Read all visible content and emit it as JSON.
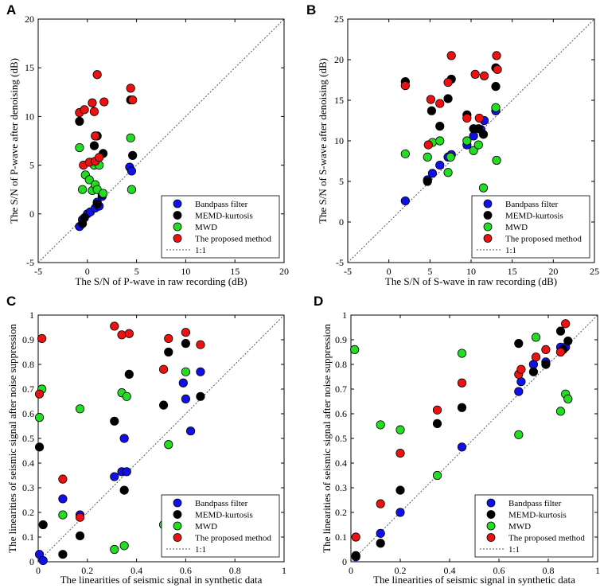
{
  "series_styles": [
    {
      "name": "Bandpass filter",
      "color": "#1010ee"
    },
    {
      "name": "MEMD-kurtosis",
      "color": "#000000"
    },
    {
      "name": "MWD",
      "color": "#22dd22"
    },
    {
      "name": "The proposed method",
      "color": "#ee1111"
    }
  ],
  "reference_line_label": "1:1",
  "chart_data": [
    {
      "panel": "A",
      "type": "scatter",
      "xlabel": "The S/N of P-wave in raw recording (dB)",
      "ylabel": "The S/N of P-wave after denoising (dB)",
      "xlim": [
        -5,
        20
      ],
      "ylim": [
        -5,
        20
      ],
      "xticks": [
        -5,
        0,
        5,
        10,
        15,
        20
      ],
      "yticks": [
        -5,
        0,
        5,
        10,
        15,
        20
      ],
      "tick_labels_x": [
        "-5",
        "0",
        "5",
        "10",
        "15",
        "20"
      ],
      "tick_labels_y": [
        "-5",
        "0",
        "5",
        "10",
        "15",
        "20"
      ],
      "legend": [
        "Bandpass filter",
        "MEMD-kurtosis",
        "MWD",
        "The proposed method",
        "1:1"
      ],
      "series": [
        {
          "name": "Bandpass filter",
          "points": [
            [
              -0.8,
              -1.3
            ],
            [
              -0.5,
              -0.6
            ],
            [
              0,
              0
            ],
            [
              0.3,
              0.2
            ],
            [
              0.8,
              0.6
            ],
            [
              1,
              1.2
            ],
            [
              1.2,
              0.8
            ],
            [
              1.5,
              1.8
            ],
            [
              4.3,
              4.8
            ],
            [
              4.5,
              4.4
            ]
          ]
        },
        {
          "name": "MEMD-kurtosis",
          "points": [
            [
              -0.8,
              9.5
            ],
            [
              -0.5,
              -1
            ],
            [
              -0.3,
              -0.4
            ],
            [
              0.3,
              5.3
            ],
            [
              0.7,
              7
            ],
            [
              1,
              8
            ],
            [
              1,
              1
            ],
            [
              1.5,
              2
            ],
            [
              1.6,
              6.2
            ],
            [
              4.4,
              11.7
            ],
            [
              4.6,
              6
            ]
          ]
        },
        {
          "name": "MWD",
          "points": [
            [
              -0.8,
              6.8
            ],
            [
              -0.5,
              2.5
            ],
            [
              -0.2,
              4
            ],
            [
              0.2,
              3.5
            ],
            [
              0.5,
              2.4
            ],
            [
              0.7,
              5
            ],
            [
              0.8,
              3
            ],
            [
              1,
              2.5
            ],
            [
              1.2,
              5
            ],
            [
              1.6,
              2.1
            ],
            [
              4.4,
              7.8
            ],
            [
              4.5,
              2.5
            ]
          ]
        },
        {
          "name": "The proposed method",
          "points": [
            [
              -0.8,
              10.4
            ],
            [
              -0.3,
              10.7
            ],
            [
              -0.4,
              5
            ],
            [
              0.2,
              5.3
            ],
            [
              0.5,
              11.4
            ],
            [
              0.7,
              10.5
            ],
            [
              0.8,
              8
            ],
            [
              0.8,
              5.4
            ],
            [
              1,
              14.3
            ],
            [
              1.2,
              5.8
            ],
            [
              1.7,
              11.5
            ],
            [
              4.4,
              12.9
            ],
            [
              4.6,
              11.7
            ]
          ]
        }
      ]
    },
    {
      "panel": "B",
      "type": "scatter",
      "xlabel": "The S/N of S-wave in raw recording (dB)",
      "ylabel": "The S/N of S-wave after denoising (dB)",
      "xlim": [
        -5,
        25
      ],
      "ylim": [
        -5,
        25
      ],
      "xticks": [
        -5,
        0,
        5,
        10,
        15,
        20,
        25
      ],
      "yticks": [
        -5,
        0,
        5,
        10,
        15,
        20,
        25
      ],
      "tick_labels_x": [
        "-5",
        "0",
        "5",
        "10",
        "15",
        "20",
        "25"
      ],
      "tick_labels_y": [
        "-5",
        "0",
        "5",
        "10",
        "15",
        "20",
        "25"
      ],
      "legend": [
        "Bandpass filter",
        "MEMD-kurtosis",
        "MWD",
        "The proposed method",
        "1:1"
      ],
      "series": [
        {
          "name": "Bandpass filter",
          "points": [
            [
              2,
              2.6
            ],
            [
              4.7,
              5.2
            ],
            [
              5.3,
              6
            ],
            [
              6.2,
              7
            ],
            [
              7.2,
              8
            ],
            [
              7.6,
              8.3
            ],
            [
              9.5,
              9.5
            ],
            [
              10.3,
              10.6
            ],
            [
              11.2,
              11.4
            ],
            [
              11.6,
              12.5
            ],
            [
              13,
              13.7
            ]
          ]
        },
        {
          "name": "MEMD-kurtosis",
          "points": [
            [
              2,
              17.3
            ],
            [
              4.7,
              5
            ],
            [
              5.2,
              13.7
            ],
            [
              6.2,
              11.8
            ],
            [
              7.2,
              15.2
            ],
            [
              7.6,
              17.6
            ],
            [
              9.5,
              13.2
            ],
            [
              10.3,
              11.5
            ],
            [
              10.9,
              11.5
            ],
            [
              11.5,
              10.8
            ],
            [
              13,
              16.7
            ],
            [
              13,
              19
            ]
          ]
        },
        {
          "name": "MWD",
          "points": [
            [
              2,
              8.4
            ],
            [
              4.7,
              8
            ],
            [
              5.3,
              9.8
            ],
            [
              6.2,
              10
            ],
            [
              7.2,
              6.1
            ],
            [
              7.5,
              8
            ],
            [
              9.5,
              10
            ],
            [
              10.3,
              8.8
            ],
            [
              10.9,
              9.5
            ],
            [
              11.5,
              4.2
            ],
            [
              13,
              14.1
            ],
            [
              13.1,
              7.6
            ]
          ]
        },
        {
          "name": "The proposed method",
          "points": [
            [
              2,
              16.8
            ],
            [
              4.8,
              9.5
            ],
            [
              5.1,
              15.1
            ],
            [
              6.2,
              14.6
            ],
            [
              7.2,
              17.2
            ],
            [
              7.6,
              20.5
            ],
            [
              9.5,
              12.8
            ],
            [
              10.5,
              18.2
            ],
            [
              11,
              12.8
            ],
            [
              11.6,
              18
            ],
            [
              13.1,
              20.5
            ],
            [
              13.2,
              18.8
            ]
          ]
        }
      ]
    },
    {
      "panel": "C",
      "type": "scatter",
      "xlabel": "The linearities of seismic signal in synthetic data",
      "ylabel": "The linearities of seismic signal after noise suppression",
      "xlim": [
        0,
        1
      ],
      "ylim": [
        0,
        1
      ],
      "xticks": [
        0,
        0.2,
        0.4,
        0.6,
        0.8,
        1
      ],
      "yticks": [
        0,
        0.1,
        0.2,
        0.3,
        0.4,
        0.5,
        0.6,
        0.7,
        0.8,
        0.9,
        1
      ],
      "tick_labels_x": [
        "0",
        "0.2",
        "0.4",
        "0.6",
        "0.8",
        "1"
      ],
      "tick_labels_y": [
        "0",
        "0.1",
        "0.2",
        "0.3",
        "0.4",
        "0.5",
        "0.6",
        "0.7",
        "0.8",
        "0.9",
        "1"
      ],
      "legend": [
        "Bandpass filter",
        "MEMD-kurtosis",
        "MWD",
        "The proposed method",
        "1:1"
      ],
      "series": [
        {
          "name": "Bandpass filter",
          "points": [
            [
              0.005,
              0.03
            ],
            [
              0.02,
              0.005
            ],
            [
              0.1,
              0.255
            ],
            [
              0.17,
              0.19
            ],
            [
              0.31,
              0.345
            ],
            [
              0.34,
              0.365
            ],
            [
              0.35,
              0.5
            ],
            [
              0.36,
              0.365
            ],
            [
              0.59,
              0.725
            ],
            [
              0.6,
              0.66
            ],
            [
              0.62,
              0.53
            ],
            [
              0.66,
              0.77
            ]
          ]
        },
        {
          "name": "MEMD-kurtosis",
          "points": [
            [
              0.005,
              0.465
            ],
            [
              0.02,
              0.15
            ],
            [
              0.1,
              0.03
            ],
            [
              0.17,
              0.105
            ],
            [
              0.31,
              0.57
            ],
            [
              0.35,
              0.29
            ],
            [
              0.37,
              0.76
            ],
            [
              0.51,
              0.635
            ],
            [
              0.53,
              0.85
            ],
            [
              0.6,
              0.885
            ],
            [
              0.66,
              0.67
            ]
          ]
        },
        {
          "name": "MWD",
          "points": [
            [
              0.005,
              0.585
            ],
            [
              0.015,
              0.7
            ],
            [
              0.1,
              0.19
            ],
            [
              0.17,
              0.62
            ],
            [
              0.31,
              0.05
            ],
            [
              0.35,
              0.065
            ],
            [
              0.34,
              0.685
            ],
            [
              0.36,
              0.67
            ],
            [
              0.51,
              0.15
            ],
            [
              0.53,
              0.475
            ],
            [
              0.6,
              0.77
            ],
            [
              0.66,
              0.165
            ]
          ]
        },
        {
          "name": "The proposed method",
          "points": [
            [
              0.005,
              0.68
            ],
            [
              0.015,
              0.905
            ],
            [
              0.1,
              0.335
            ],
            [
              0.17,
              0.18
            ],
            [
              0.31,
              0.955
            ],
            [
              0.34,
              0.92
            ],
            [
              0.37,
              0.925
            ],
            [
              0.51,
              0.78
            ],
            [
              0.53,
              0.905
            ],
            [
              0.6,
              0.93
            ],
            [
              0.66,
              0.88
            ]
          ]
        }
      ]
    },
    {
      "panel": "D",
      "type": "scatter",
      "xlabel": "The linearities of seismic signal in synthetic data",
      "ylabel": "The linearities of seismic signal after noise suppression",
      "xlim": [
        0,
        1
      ],
      "ylim": [
        0,
        1
      ],
      "xticks": [
        0,
        0.2,
        0.4,
        0.6,
        0.8,
        1
      ],
      "yticks": [
        0,
        0.1,
        0.2,
        0.3,
        0.4,
        0.5,
        0.6,
        0.7,
        0.8,
        0.9,
        1
      ],
      "tick_labels_x": [
        "0",
        "0.2",
        "0.4",
        "0.6",
        "0.8",
        "1"
      ],
      "tick_labels_y": [
        "0",
        "0.1",
        "0.2",
        "0.3",
        "0.4",
        "0.5",
        "0.6",
        "0.7",
        "0.8",
        "0.9",
        "1"
      ],
      "legend": [
        "Bandpass filter",
        "MEMD-kurtosis",
        "MWD",
        "The proposed method",
        "1:1"
      ],
      "series": [
        {
          "name": "Bandpass filter",
          "points": [
            [
              0.02,
              0.02
            ],
            [
              0.12,
              0.115
            ],
            [
              0.2,
              0.2
            ],
            [
              0.45,
              0.465
            ],
            [
              0.68,
              0.69
            ],
            [
              0.69,
              0.73
            ],
            [
              0.74,
              0.8
            ],
            [
              0.79,
              0.81
            ],
            [
              0.85,
              0.87
            ],
            [
              0.87,
              0.87
            ]
          ]
        },
        {
          "name": "MEMD-kurtosis",
          "points": [
            [
              0.02,
              0.025
            ],
            [
              0.12,
              0.075
            ],
            [
              0.2,
              0.29
            ],
            [
              0.35,
              0.56
            ],
            [
              0.45,
              0.625
            ],
            [
              0.68,
              0.885
            ],
            [
              0.74,
              0.77
            ],
            [
              0.79,
              0.8
            ],
            [
              0.85,
              0.935
            ],
            [
              0.86,
              0.86
            ],
            [
              0.88,
              0.895
            ]
          ]
        },
        {
          "name": "MWD",
          "points": [
            [
              0.015,
              0.86
            ],
            [
              0.12,
              0.555
            ],
            [
              0.2,
              0.535
            ],
            [
              0.35,
              0.35
            ],
            [
              0.45,
              0.845
            ],
            [
              0.68,
              0.515
            ],
            [
              0.69,
              0.04
            ],
            [
              0.75,
              0.91
            ],
            [
              0.79,
              0.165
            ],
            [
              0.85,
              0.61
            ],
            [
              0.87,
              0.68
            ],
            [
              0.88,
              0.66
            ]
          ]
        },
        {
          "name": "The proposed method",
          "points": [
            [
              0.02,
              0.1
            ],
            [
              0.12,
              0.235
            ],
            [
              0.2,
              0.44
            ],
            [
              0.35,
              0.615
            ],
            [
              0.45,
              0.725
            ],
            [
              0.68,
              0.76
            ],
            [
              0.69,
              0.78
            ],
            [
              0.75,
              0.83
            ],
            [
              0.79,
              0.86
            ],
            [
              0.85,
              0.85
            ],
            [
              0.87,
              0.965
            ]
          ]
        }
      ]
    }
  ]
}
